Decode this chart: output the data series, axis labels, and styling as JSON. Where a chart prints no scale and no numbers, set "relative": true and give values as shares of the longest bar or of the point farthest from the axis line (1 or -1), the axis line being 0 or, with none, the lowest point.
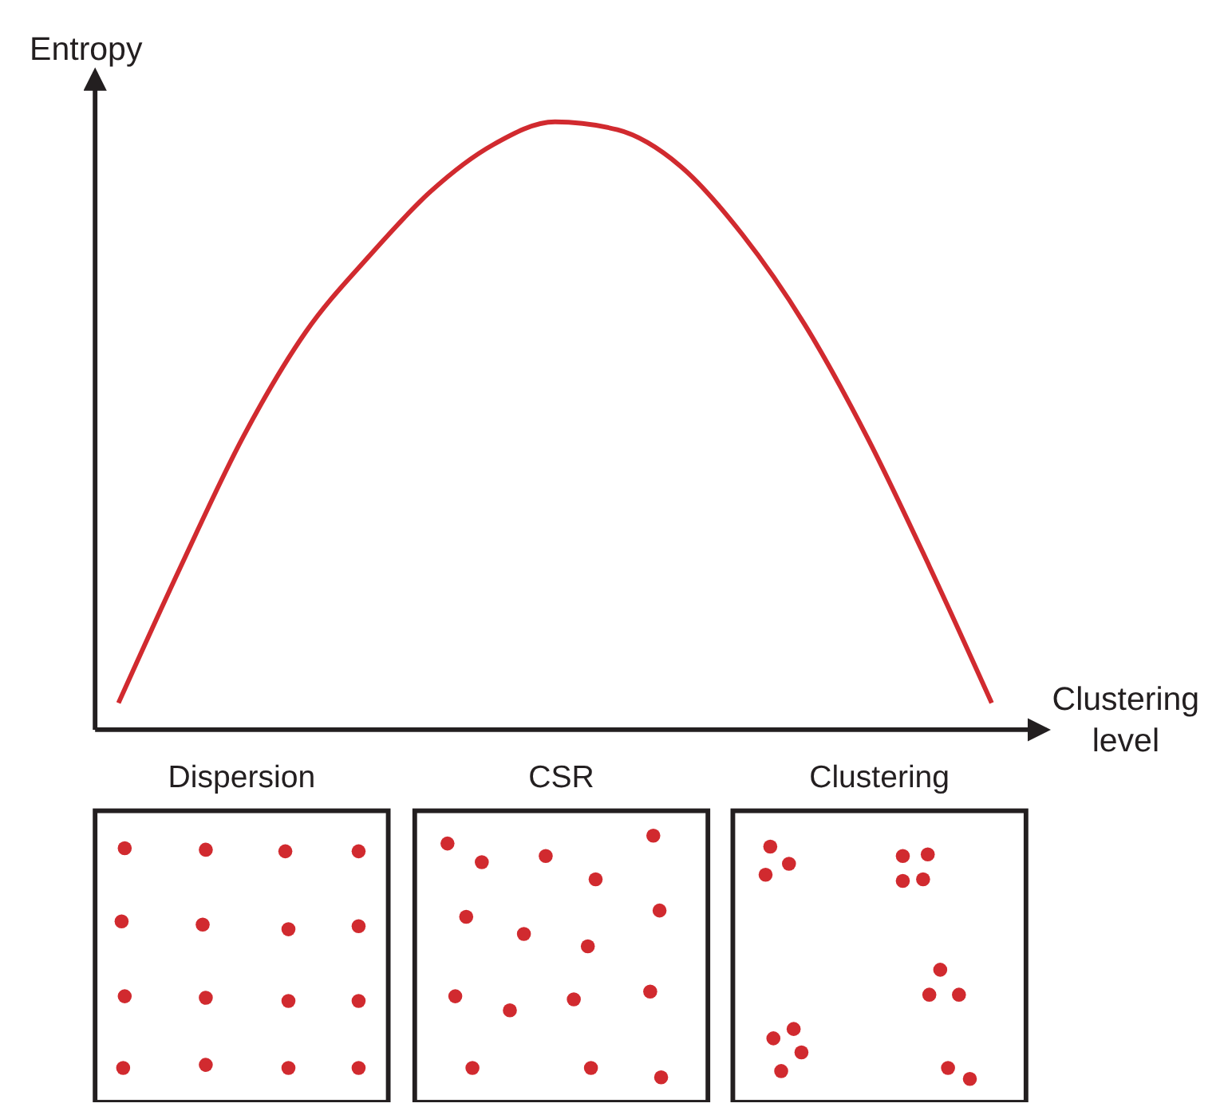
{
  "chart_data": {
    "type": "line",
    "relative": true,
    "xlabel": "Clustering level",
    "ylabel": "Entropy",
    "categories": [
      null,
      null,
      null,
      null,
      null,
      null,
      null,
      null,
      null,
      null,
      null,
      null,
      null,
      null,
      null
    ],
    "series": [
      {
        "color": "#d12a2f",
        "values": [
          0.044,
          0.269,
          0.482,
          0.654,
          0.777,
          0.885,
          0.962,
          1,
          0.987,
          0.928,
          0.815,
          0.667,
          0.482,
          0.269,
          0.044
        ]
      }
    ],
    "annotations": [
      "Dispersion",
      "CSR",
      "Clustering"
    ],
    "grid": false,
    "marker": "none",
    "line_style": "solid"
  }
}
